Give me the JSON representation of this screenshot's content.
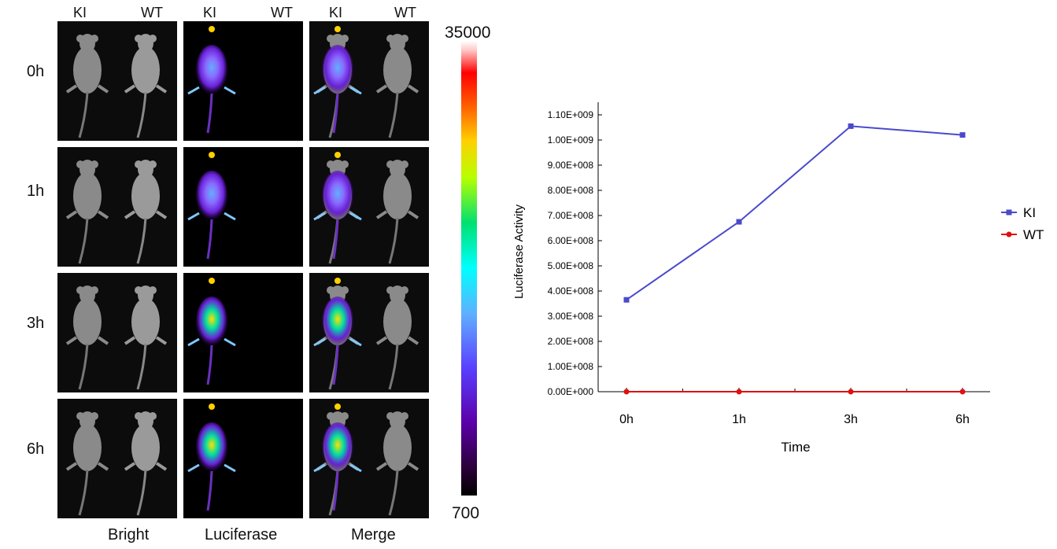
{
  "figure": {
    "columns": [
      "Bright",
      "Luciferase",
      "Merge"
    ],
    "mouse_labels": [
      "KI",
      "WT"
    ],
    "rows": [
      "0h",
      "1h",
      "3h",
      "6h"
    ],
    "colorbar": {
      "max": "35000",
      "min": "700"
    }
  },
  "chart_data": {
    "type": "line",
    "categories": [
      "0h",
      "1h",
      "3h",
      "6h"
    ],
    "series": [
      {
        "name": "KI",
        "values": [
          365000000,
          675000000,
          1055000000,
          1020000000
        ],
        "color": "#4a4acb",
        "marker": "square"
      },
      {
        "name": "WT",
        "values": [
          0,
          0,
          0,
          0
        ],
        "color": "#e01010",
        "marker": "circle"
      }
    ],
    "xlabel": "Time",
    "ylabel": "Luciferase Activity",
    "ylim": [
      0,
      1100000000
    ],
    "yticks": [
      "0.00E+000",
      "1.00E+008",
      "2.00E+008",
      "3.00E+008",
      "4.00E+008",
      "5.00E+008",
      "6.00E+008",
      "7.00E+008",
      "8.00E+008",
      "9.00E+008",
      "1.00E+009",
      "1.10E+009"
    ],
    "grid": false,
    "legend": "right"
  }
}
